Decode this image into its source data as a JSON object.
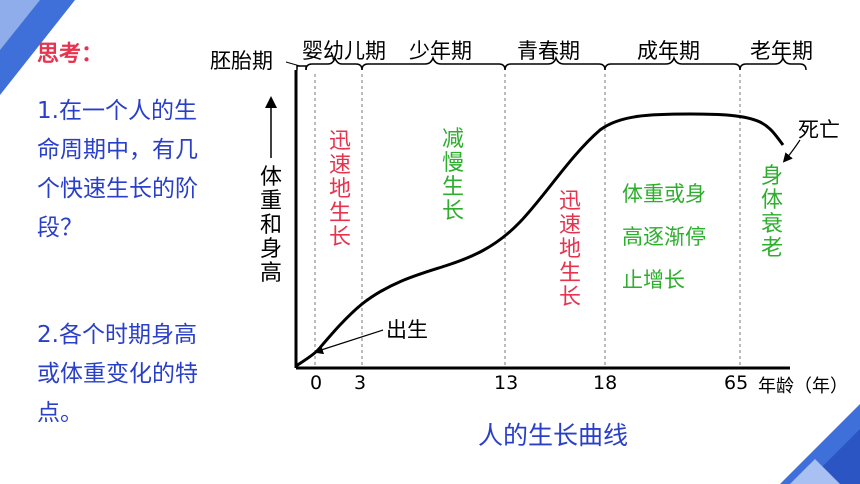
{
  "slide": {
    "heading": "思考：",
    "question1": "1.在一个人的生命周期中，有几个快速生长的阶段？",
    "question2": "2.各个时期身高或体重变化的特点。"
  },
  "diagram": {
    "caption": "人的生长曲线",
    "y_axis_label": "体重和身高",
    "x_axis_unit": "年龄（年）",
    "stages": [
      "胚胎期",
      "婴幼儿期",
      "少年期",
      "青春期",
      "成年期",
      "老年期"
    ],
    "ticks": [
      "0",
      "3",
      "13",
      "18",
      "65"
    ],
    "annotations": {
      "birth": "出生",
      "death": "死亡",
      "rapid_growth_1": "迅速地生长",
      "slow_growth": "减慢生长",
      "rapid_growth_2": "迅速地生长",
      "adult_line1": "体重或身",
      "adult_line2": "高逐渐停",
      "adult_line3": "止增长",
      "decline": "身体衰老"
    },
    "colors": {
      "rapid": "#e8334e",
      "slow": "#2dae2d",
      "question": "#2a3fc9",
      "heading": "#e8334e",
      "accent": "#3f6fd8"
    }
  }
}
